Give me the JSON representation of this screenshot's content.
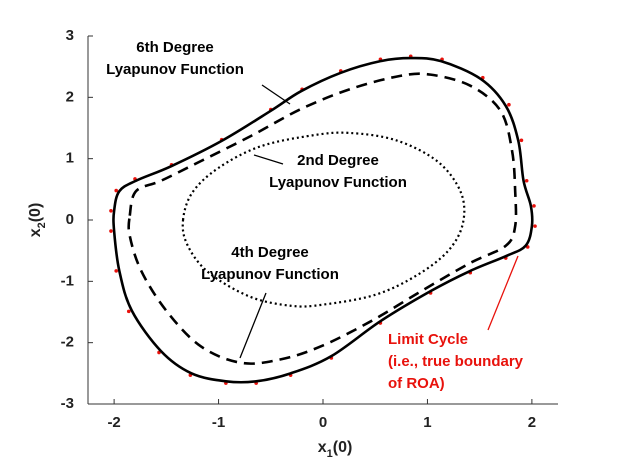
{
  "chart_data": {
    "type": "line",
    "xlabel": [
      "x",
      "1",
      "(0)"
    ],
    "ylabel": [
      "x",
      "2",
      "(0)"
    ],
    "xlim": [
      -2.25,
      2.25
    ],
    "ylim": [
      -3,
      3
    ],
    "xticks": [
      -2,
      -1,
      0,
      1,
      2
    ],
    "yticks": [
      -3,
      -2,
      -1,
      0,
      1,
      2,
      3
    ],
    "series": [
      {
        "style": "markers",
        "color": "#e8120c",
        "x": [
          -2.03,
          -1.98,
          -1.8,
          -1.45,
          -0.97,
          -0.5,
          -0.2,
          0.17,
          0.55,
          0.84,
          1.14,
          1.53,
          1.78,
          1.9,
          1.95,
          2.02,
          2.03,
          1.96,
          1.75,
          1.41,
          1.03,
          0.55,
          0.08,
          -0.31,
          -0.64,
          -0.93,
          -1.27,
          -1.57,
          -1.86,
          -1.98,
          -2.03
        ],
        "y": [
          0.15,
          0.48,
          0.67,
          0.9,
          1.31,
          1.8,
          2.13,
          2.43,
          2.62,
          2.67,
          2.62,
          2.32,
          1.88,
          1.3,
          0.64,
          0.23,
          -0.1,
          -0.44,
          -0.62,
          -0.86,
          -1.19,
          -1.68,
          -2.25,
          -2.53,
          -2.66,
          -2.66,
          -2.53,
          -2.16,
          -1.49,
          -0.83,
          -0.18
        ]
      },
      {
        "style": "solid",
        "color": "#000000",
        "x": [
          -2.0,
          -1.95,
          -1.79,
          -1.45,
          -0.97,
          -0.5,
          -0.21,
          0.17,
          0.55,
          0.84,
          1.13,
          1.51,
          1.75,
          1.87,
          1.92,
          1.99,
          2.0,
          1.94,
          1.75,
          1.41,
          1.03,
          0.55,
          0.08,
          -0.31,
          -0.64,
          -0.93,
          -1.26,
          -1.55,
          -1.83,
          -1.95,
          -2.0
        ],
        "y": [
          0.15,
          0.47,
          0.64,
          0.88,
          1.29,
          1.78,
          2.1,
          2.4,
          2.59,
          2.64,
          2.59,
          2.3,
          1.86,
          1.29,
          0.64,
          0.23,
          -0.1,
          -0.42,
          -0.59,
          -0.83,
          -1.16,
          -1.65,
          -2.22,
          -2.5,
          -2.63,
          -2.63,
          -2.5,
          -2.14,
          -1.48,
          -0.83,
          -0.18
        ]
      },
      {
        "style": "dashed",
        "color": "#000000",
        "x": [
          -1.85,
          -1.79,
          -1.55,
          -1.17,
          -0.69,
          -0.21,
          0.27,
          0.74,
          1.03,
          1.41,
          1.7,
          1.81,
          1.84,
          1.84,
          1.75,
          1.41,
          0.94,
          0.46,
          -0.02,
          -0.4,
          -0.78,
          -1.17,
          -1.5,
          -1.74,
          -1.85
        ],
        "y": [
          0.07,
          0.47,
          0.64,
          0.96,
          1.37,
          1.81,
          2.14,
          2.35,
          2.37,
          2.19,
          1.78,
          1.13,
          0.47,
          -0.1,
          -0.42,
          -0.7,
          -1.16,
          -1.65,
          -2.06,
          -2.27,
          -2.33,
          -2.06,
          -1.48,
          -0.83,
          -0.26
        ]
      },
      {
        "style": "dotted",
        "color": "#000000",
        "x": [
          -1.34,
          -1.25,
          -1.0,
          -0.6,
          -0.1,
          0.25,
          0.7,
          1.1,
          1.32,
          1.34,
          1.2,
          0.9,
          0.5,
          0.0,
          -0.3,
          -0.7,
          -1.1,
          -1.3
        ],
        "y": [
          0.0,
          0.45,
          0.85,
          1.2,
          1.38,
          1.42,
          1.3,
          0.95,
          0.45,
          -0.05,
          -0.5,
          -0.9,
          -1.22,
          -1.38,
          -1.4,
          -1.25,
          -0.85,
          -0.4
        ]
      }
    ],
    "annotations": [
      {
        "lines": [
          "6th Degree",
          "Lyapunov Function"
        ],
        "color": "#000000"
      },
      {
        "lines": [
          "2nd Degree",
          "Lyapunov Function"
        ],
        "color": "#000000"
      },
      {
        "lines": [
          "4th Degree",
          "Lyapunov Function"
        ],
        "color": "#000000"
      },
      {
        "lines": [
          "Limit Cycle",
          "(i.e., true boundary",
          "of ROA)"
        ],
        "color": "#e8120c"
      }
    ]
  }
}
